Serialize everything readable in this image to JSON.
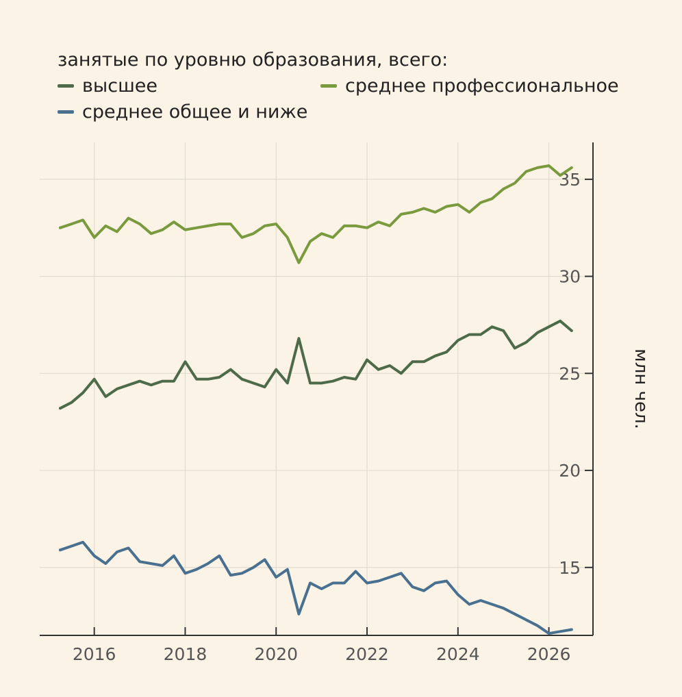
{
  "chart_data": {
    "type": "line",
    "legend_title": "занятые по уровню образования, всего:",
    "ylabel": "млн чел.",
    "y_axis_side": "right",
    "grid": true,
    "legend_placement": "top",
    "xlim": [
      2014.8,
      2026.97
    ],
    "ylim": [
      11.5,
      36.9
    ],
    "x_ticks": [
      2016,
      2018,
      2020,
      2022,
      2024,
      2026
    ],
    "x_tick_labels": [
      "2016",
      "2018",
      "2020",
      "2022",
      "2024",
      "2026"
    ],
    "y_ticks": [
      15,
      20,
      25,
      30,
      35
    ],
    "y_tick_labels": [
      "15",
      "20",
      "25",
      "30",
      "35"
    ],
    "x": [
      2015.25,
      2015.5,
      2015.75,
      2016.0,
      2016.25,
      2016.5,
      2016.75,
      2017.0,
      2017.25,
      2017.5,
      2017.75,
      2018.0,
      2018.25,
      2018.5,
      2018.75,
      2019.0,
      2019.25,
      2019.5,
      2019.75,
      2020.0,
      2020.25,
      2020.5,
      2020.75,
      2021.0,
      2021.25,
      2021.5,
      2021.75,
      2022.0,
      2022.25,
      2022.5,
      2022.75,
      2023.0,
      2023.25,
      2023.5,
      2023.75,
      2024.0,
      2024.25,
      2024.5,
      2024.75,
      2025.0,
      2025.25,
      2025.5,
      2025.75,
      2026.0,
      2026.25,
      2026.5
    ],
    "series": [
      {
        "name": "высшее",
        "color": "#4d6b4a",
        "values": [
          23.2,
          23.5,
          24.0,
          24.7,
          23.8,
          24.2,
          24.4,
          24.6,
          24.4,
          24.6,
          24.6,
          25.6,
          24.7,
          24.7,
          24.8,
          25.2,
          24.7,
          24.5,
          24.3,
          25.2,
          24.5,
          26.8,
          24.5,
          24.5,
          24.6,
          24.8,
          24.7,
          25.7,
          25.2,
          25.4,
          25.0,
          25.6,
          25.6,
          25.9,
          26.1,
          26.7,
          27.0,
          27.0,
          27.4,
          27.2,
          26.3,
          26.6,
          27.1,
          27.4,
          27.7,
          27.2
        ]
      },
      {
        "name": "среднее профессиональное",
        "color": "#7a9a3e",
        "values": [
          32.5,
          32.7,
          32.9,
          32.0,
          32.6,
          32.3,
          33.0,
          32.7,
          32.2,
          32.4,
          32.8,
          32.4,
          32.5,
          32.6,
          32.7,
          32.7,
          32.0,
          32.2,
          32.6,
          32.7,
          32.0,
          30.7,
          31.8,
          32.2,
          32.0,
          32.6,
          32.6,
          32.5,
          32.8,
          32.6,
          33.2,
          33.3,
          33.5,
          33.3,
          33.6,
          33.7,
          33.3,
          33.8,
          34.0,
          34.5,
          34.8,
          35.4,
          35.6,
          35.7,
          35.2,
          35.6
        ]
      },
      {
        "name": "среднее общее и ниже",
        "color": "#4a7090",
        "values": [
          15.9,
          16.1,
          16.3,
          15.6,
          15.2,
          15.8,
          16.0,
          15.3,
          15.2,
          15.1,
          15.6,
          14.7,
          14.9,
          15.2,
          15.6,
          14.6,
          14.7,
          15.0,
          15.4,
          14.5,
          14.9,
          12.6,
          14.2,
          13.9,
          14.2,
          14.2,
          14.8,
          14.2,
          14.3,
          14.5,
          14.7,
          14.0,
          13.8,
          14.2,
          14.3,
          13.6,
          13.1,
          13.3,
          13.1,
          12.9,
          12.6,
          12.3,
          12.0,
          11.6,
          11.7,
          11.8
        ]
      }
    ]
  }
}
